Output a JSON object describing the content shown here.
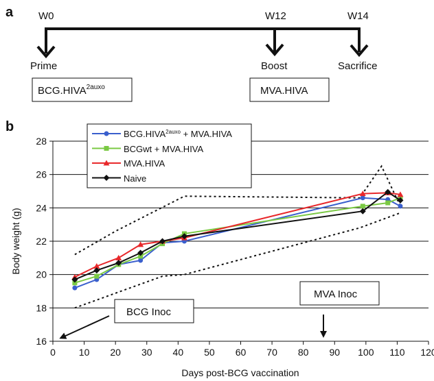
{
  "panel_a": {
    "panel_label": "a",
    "weeks": [
      {
        "label": "W0",
        "event": "Prime"
      },
      {
        "label": "W12",
        "event": "Boost"
      },
      {
        "label": "W14",
        "event": "Sacrifice"
      }
    ],
    "boxes": {
      "prime_main": "BCG.HIVA",
      "prime_sup": "2auxo",
      "boost": "MVA.HIVA"
    }
  },
  "panel_b": {
    "panel_label": "b",
    "annotations": {
      "bcg": "BCG Inoc",
      "mva": "MVA Inoc"
    }
  },
  "colors": {
    "blue": "#3a5fcd",
    "green": "#7ac943",
    "red": "#e8282b",
    "black": "#111111"
  },
  "chart_data": {
    "type": "line",
    "title": "",
    "xlabel": "Days post-BCG vaccination",
    "ylabel": "Body weight (g)",
    "xlim": [
      0,
      120
    ],
    "ylim": [
      16,
      28
    ],
    "xticks": [
      0,
      10,
      20,
      30,
      40,
      50,
      60,
      70,
      80,
      90,
      100,
      110,
      120
    ],
    "yticks": [
      16,
      18,
      20,
      22,
      24,
      26,
      28
    ],
    "grid": "horizontal",
    "legend_position": "top-left",
    "series": [
      {
        "name": "BCG.HIVA",
        "name_sup": "2auxo",
        "name_suffix": " + MVA.HIVA",
        "color": "#3a5fcd",
        "marker": "circle",
        "x": [
          7,
          14,
          21,
          28,
          35,
          42,
          99,
          107,
          111
        ],
        "y": [
          19.2,
          19.7,
          20.6,
          20.85,
          21.9,
          22.0,
          24.6,
          24.5,
          24.1
        ]
      },
      {
        "name": "BCGwt + MVA.HIVA",
        "color": "#7ac943",
        "marker": "square",
        "x": [
          7,
          14,
          21,
          28,
          35,
          42,
          99,
          107,
          111
        ],
        "y": [
          19.5,
          19.9,
          20.6,
          21.1,
          21.85,
          22.45,
          24.1,
          24.3,
          24.6
        ]
      },
      {
        "name": "MVA.HIVA",
        "color": "#e8282b",
        "marker": "triangle",
        "x": [
          7,
          14,
          21,
          28,
          35,
          42,
          99,
          107,
          111
        ],
        "y": [
          19.85,
          20.5,
          21.0,
          21.8,
          22.0,
          22.2,
          24.85,
          24.9,
          24.8
        ]
      },
      {
        "name": "Naive",
        "color": "#111111",
        "marker": "diamond",
        "x": [
          7,
          14,
          21,
          28,
          35,
          42,
          99,
          107,
          111
        ],
        "y": [
          19.7,
          20.25,
          20.7,
          21.3,
          22.0,
          22.3,
          23.8,
          24.95,
          24.45
        ]
      }
    ],
    "envelope": {
      "upper": {
        "x": [
          7,
          20,
          42,
          98,
          105,
          111
        ],
        "y": [
          21.2,
          22.6,
          24.7,
          24.6,
          26.5,
          24.1
        ]
      },
      "lower": {
        "x": [
          7,
          35,
          42,
          98,
          111
        ],
        "y": [
          18.0,
          19.9,
          20.0,
          22.8,
          23.7
        ]
      }
    }
  }
}
